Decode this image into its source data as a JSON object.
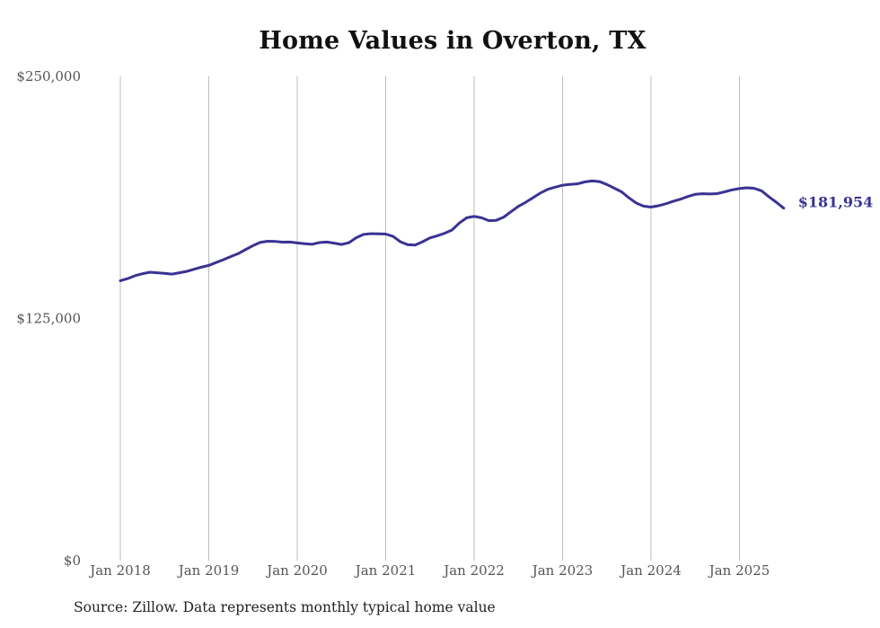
{
  "title": "Home Values in Overton, TX",
  "source": "Source: Zillow. Data represents monthly typical home value",
  "colors": {
    "line": "#3b3293",
    "grid": "#bdbdbd"
  },
  "chart_data": {
    "type": "line",
    "title": "Home Values in Overton, TX",
    "xlabel": "",
    "ylabel": "",
    "ylim": [
      0,
      250000
    ],
    "yticks": [
      {
        "value": 0,
        "label": "$0"
      },
      {
        "value": 125000,
        "label": "$125,000"
      },
      {
        "value": 250000,
        "label": "$250,000"
      }
    ],
    "xticks": [
      "Jan 2018",
      "Jan 2019",
      "Jan 2020",
      "Jan 2021",
      "Jan 2022",
      "Jan 2023",
      "Jan 2024",
      "Jan 2025"
    ],
    "grid": "vertical",
    "x_start": "2018-01",
    "frequency": "monthly",
    "end_label": "$181,954",
    "series": [
      {
        "values": [
          144500,
          145600,
          147100,
          148100,
          148900,
          148600,
          148300,
          147900,
          148600,
          149300,
          150400,
          151500,
          152400,
          153900,
          155400,
          157000,
          158500,
          160600,
          162600,
          164300,
          164900,
          164800,
          164400,
          164500,
          164000,
          163600,
          163300,
          164200,
          164500,
          163900,
          163200,
          164100,
          166700,
          168400,
          168800,
          168700,
          168600,
          167400,
          164600,
          163100,
          162900,
          164600,
          166600,
          167700,
          169000,
          170700,
          174300,
          177000,
          177700,
          177000,
          175500,
          175700,
          177300,
          180100,
          182900,
          185000,
          187400,
          189800,
          191700,
          192800,
          193800,
          194200,
          194500,
          195500,
          196000,
          195700,
          194200,
          192300,
          190400,
          187300,
          184600,
          183000,
          182500,
          183200,
          184200,
          185500,
          186600,
          188000,
          189100,
          189400,
          189300,
          189500,
          190400,
          191400,
          192100,
          192500,
          192200,
          190900,
          187800,
          185000,
          181954
        ]
      }
    ]
  }
}
